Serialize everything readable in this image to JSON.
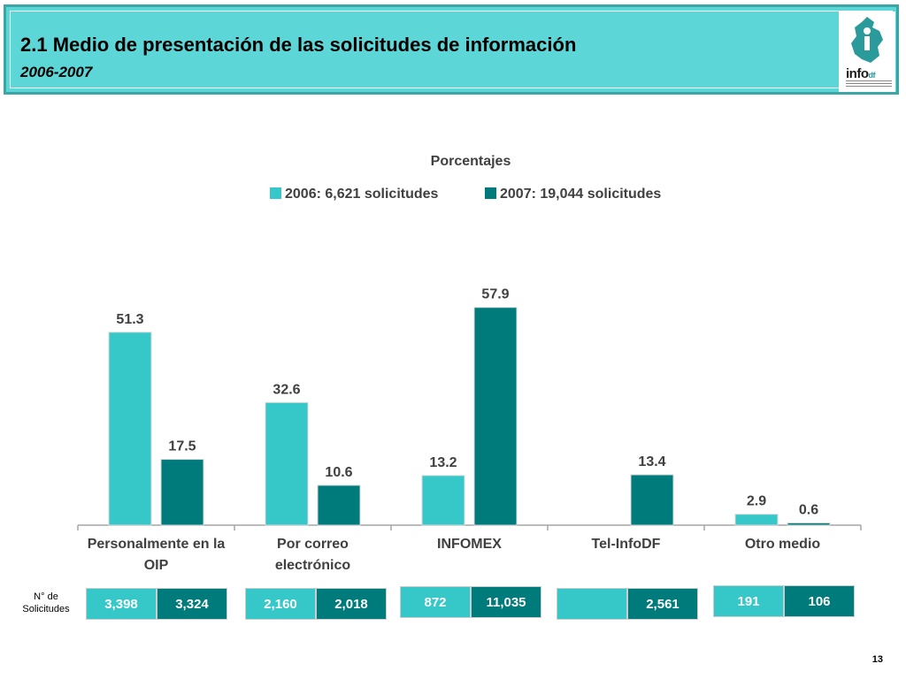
{
  "header": {
    "title": "2.1 Medio de presentación de las solicitudes de información",
    "subtitle": "2006-2007",
    "logo_text_main": "info",
    "logo_text_suffix": "df"
  },
  "colors": {
    "series_2006": "#36c8c8",
    "series_2007": "#007b7b",
    "header_bg": "#5cd6d6",
    "text_dark": "#404040"
  },
  "chart_data": {
    "type": "bar",
    "title": "Porcentajes",
    "categories": [
      "Personalmente en la OIP",
      "Por correo electrónico",
      "INFOMEX",
      "Tel-InfoDF",
      "Otro medio"
    ],
    "category_lines": [
      [
        "Personalmente en la",
        "OIP"
      ],
      [
        "Por correo",
        "electrónico"
      ],
      [
        "INFOMEX"
      ],
      [
        "Tel-InfoDF"
      ],
      [
        "Otro medio"
      ]
    ],
    "series": [
      {
        "name": "2006: 6,621 solicitudes",
        "values": [
          51.3,
          32.6,
          13.2,
          null,
          2.9
        ],
        "labels": [
          "51.3",
          "32.6",
          "13.2",
          "",
          "2.9"
        ]
      },
      {
        "name": "2007: 19,044 solicitudes",
        "values": [
          17.5,
          10.6,
          57.9,
          13.4,
          0.6
        ],
        "labels": [
          "17.5",
          "10.6",
          "57.9",
          "13.4",
          "0.6"
        ]
      }
    ],
    "xlabel": "",
    "ylabel": "",
    "ylim": [
      0,
      60
    ],
    "grid": false,
    "legend": "top"
  },
  "counts": {
    "label_line1": "N° de",
    "label_line2": "Solicitudes",
    "values_2006": [
      "3,398",
      "2,160",
      "872",
      "",
      "191"
    ],
    "values_2007": [
      "3,324",
      "2,018",
      "11,035",
      "2,561",
      "106"
    ]
  },
  "page_number": "13"
}
